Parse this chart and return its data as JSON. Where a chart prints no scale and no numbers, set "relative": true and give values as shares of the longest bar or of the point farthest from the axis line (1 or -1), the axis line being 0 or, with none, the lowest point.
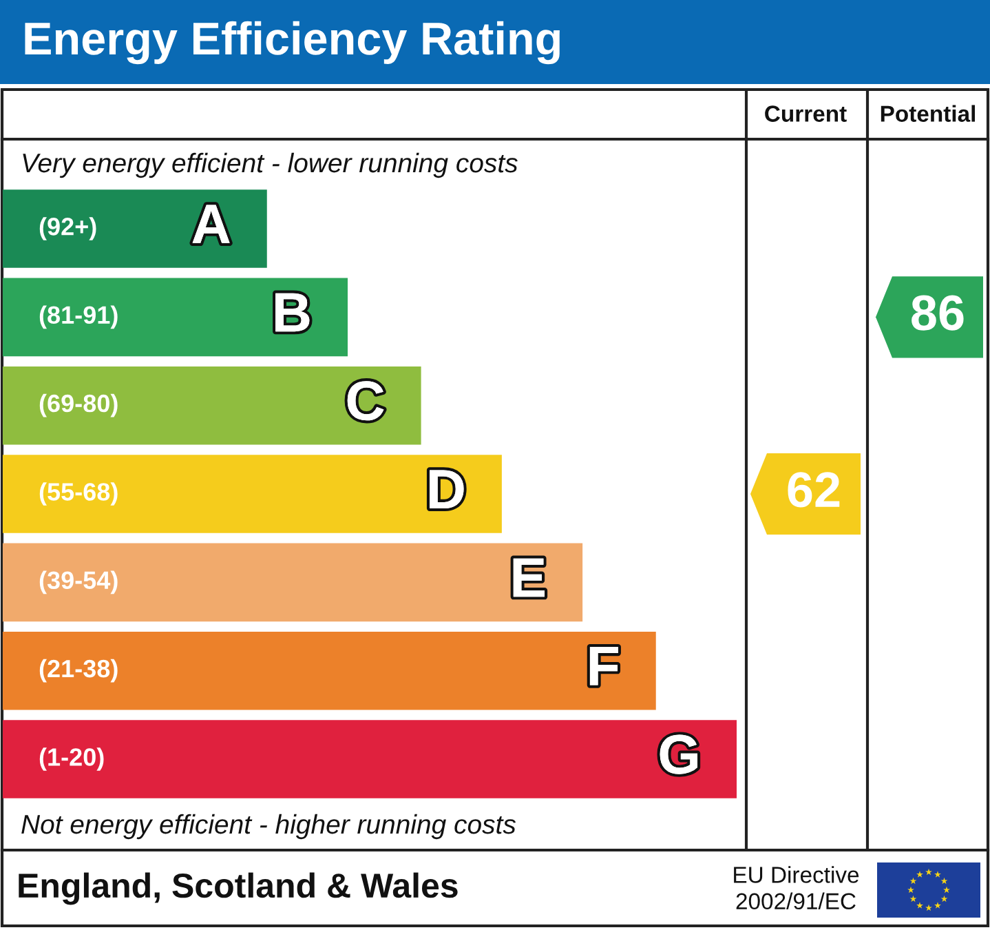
{
  "chart_data": {
    "type": "bar",
    "orientation": "horizontal",
    "relative": true,
    "title": "Energy Efficiency Rating",
    "categories": [
      "A",
      "B",
      "C",
      "D",
      "E",
      "F",
      "G"
    ],
    "values": [
      0.36,
      0.47,
      0.57,
      0.68,
      0.79,
      0.89,
      1
    ],
    "colors": [
      "#1a8a55",
      "#2ca55a",
      "#8fbd3f",
      "#f5cc1c",
      "#f1aa6c",
      "#ec812a",
      "#e0213e"
    ],
    "annotations": [
      "(92+)",
      "(81-91)",
      "(69-80)",
      "(55-68)",
      "(39-54)",
      "(21-38)",
      "(1-20)",
      "Current",
      "Potential",
      "Very energy efficient - lower running costs",
      "Not energy efficient - higher running costs",
      "England, Scotland & Wales",
      "EU Directive\n2002/91/EC",
      "62",
      "86"
    ]
  }
}
